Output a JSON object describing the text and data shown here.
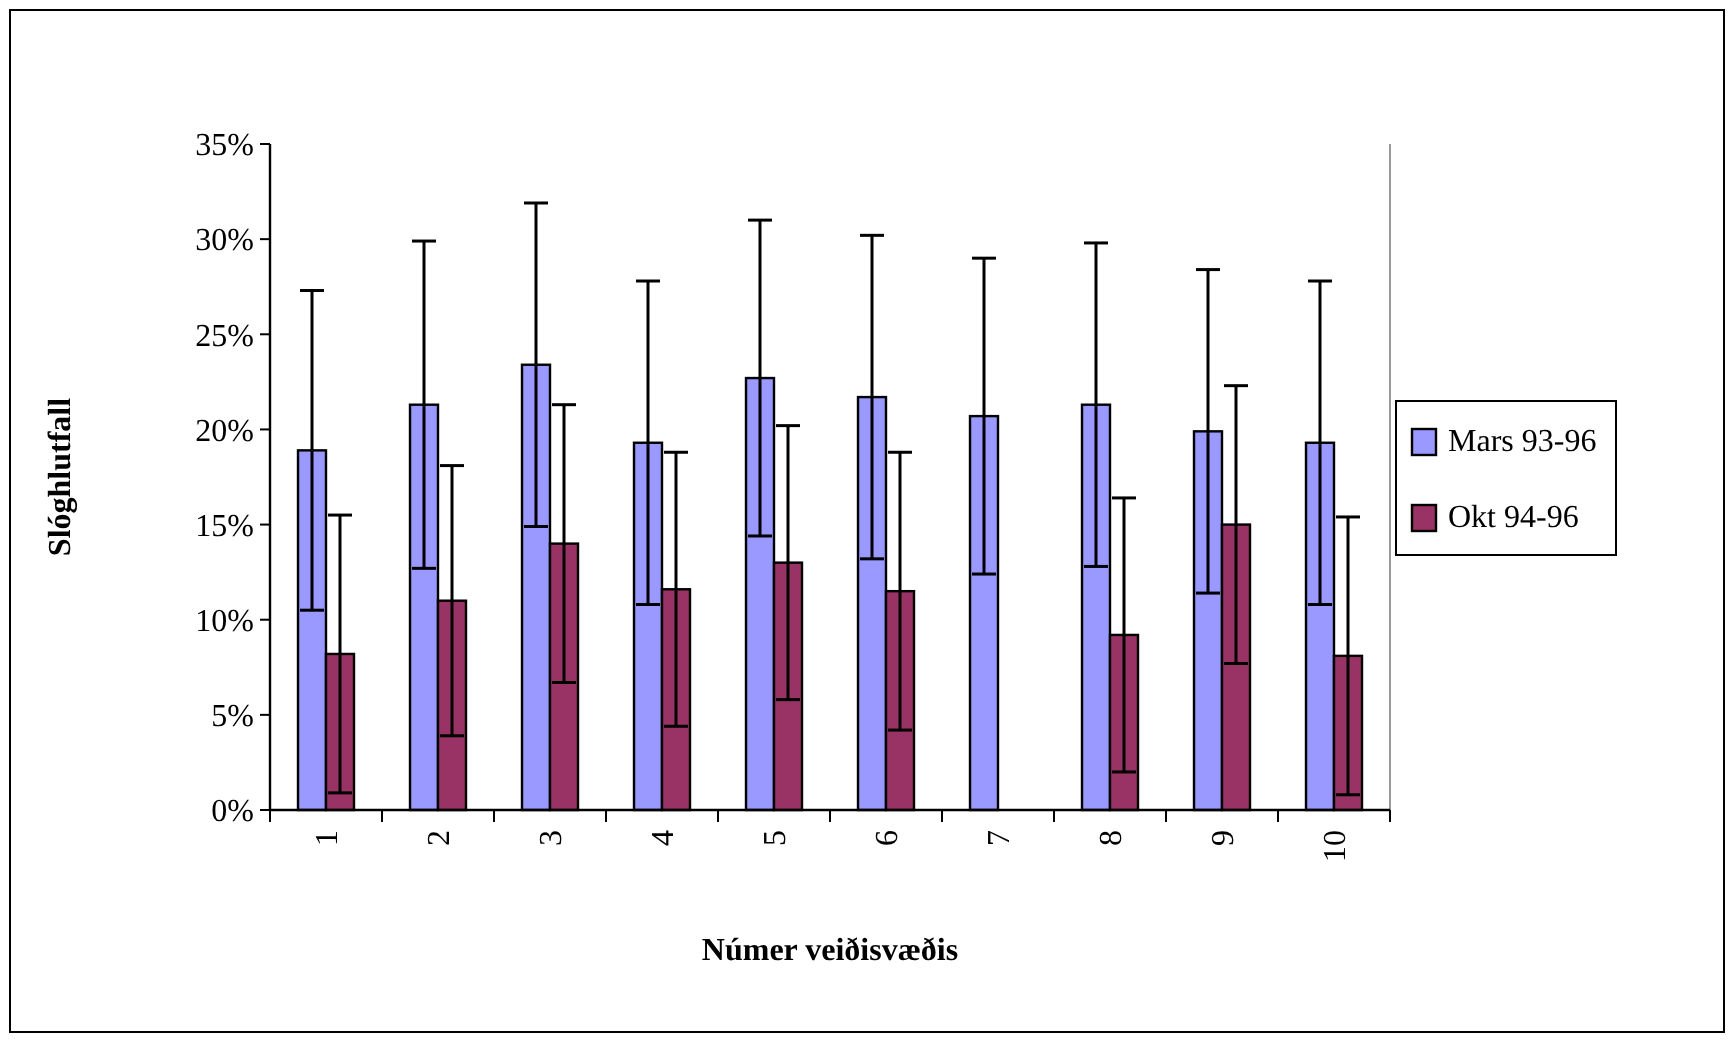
{
  "chart_data": {
    "type": "bar",
    "xlabel": "Númer veiðisvæðis",
    "ylabel": "Slóghlutfall",
    "categories": [
      "1",
      "2",
      "3",
      "4",
      "5",
      "6",
      "7",
      "8",
      "9",
      "10"
    ],
    "series": [
      {
        "name": "Mars 93-96",
        "color": "#9999ff",
        "values": [
          18.9,
          21.3,
          23.4,
          19.3,
          22.7,
          21.7,
          20.7,
          21.3,
          19.9,
          19.3
        ],
        "errors": [
          8.4,
          8.6,
          8.5,
          8.5,
          8.3,
          8.5,
          8.3,
          8.5,
          8.5,
          8.5
        ]
      },
      {
        "name": "Okt 94-96",
        "color": "#993366",
        "values": [
          8.2,
          11.0,
          14.0,
          11.6,
          13.0,
          11.5,
          null,
          9.2,
          15.0,
          8.1
        ],
        "errors": [
          7.3,
          7.1,
          7.3,
          7.2,
          7.2,
          7.3,
          null,
          7.2,
          7.3,
          7.3
        ]
      }
    ],
    "ylim": [
      0,
      35
    ],
    "yticks": [
      {
        "value": 0,
        "label": "0%"
      },
      {
        "value": 5,
        "label": "5%"
      },
      {
        "value": 10,
        "label": "10%"
      },
      {
        "value": 15,
        "label": "15%"
      },
      {
        "value": 20,
        "label": "20%"
      },
      {
        "value": 25,
        "label": "25%"
      },
      {
        "value": 30,
        "label": "30%"
      },
      {
        "value": 35,
        "label": "35%"
      }
    ],
    "grid": false,
    "legend": "right"
  }
}
